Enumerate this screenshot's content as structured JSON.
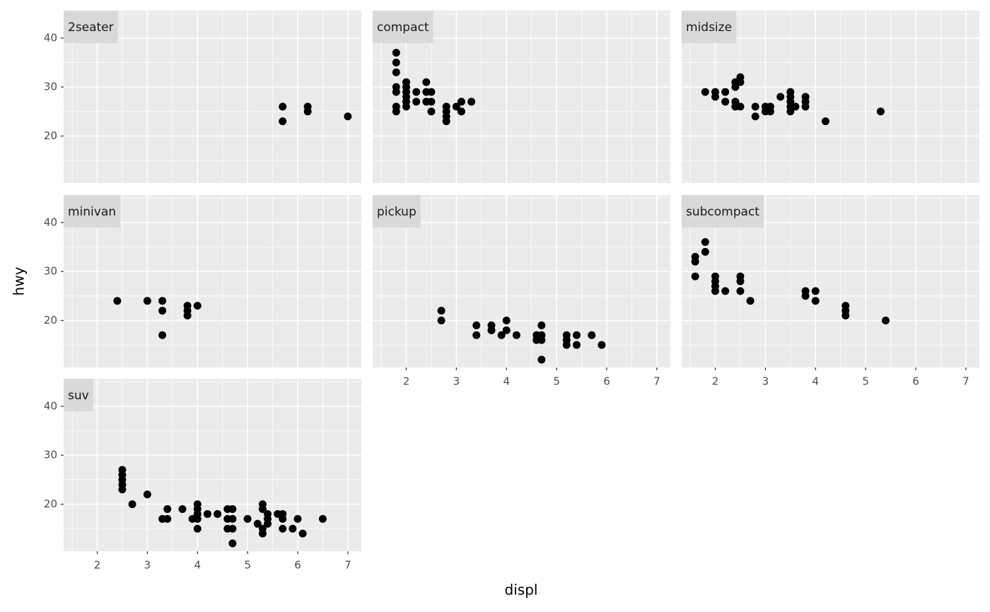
{
  "axis_labels": {
    "x": "displ",
    "y": "hwy"
  },
  "chart_data": [
    {
      "type": "scatter",
      "title": "2seater",
      "color": "#000000",
      "grid": true,
      "x": [
        5.7,
        5.7,
        6.2,
        6.2,
        7.0
      ],
      "values": [
        26,
        23,
        26,
        25,
        24
      ],
      "xlim": [
        1.33,
        7.27
      ],
      "ylim": [
        10.4,
        45.6
      ],
      "xticks": [
        2,
        3,
        4,
        5,
        6,
        7
      ],
      "yticks": [
        20,
        30,
        40
      ],
      "xminor": [
        1.5,
        2.5,
        3.5,
        4.5,
        5.5,
        6.5
      ],
      "yminor": [
        15,
        25,
        35,
        45
      ]
    },
    {
      "type": "scatter",
      "title": "compact",
      "color": "#000000",
      "grid": true,
      "x": [
        1.8,
        1.8,
        1.8,
        1.8,
        1.8,
        1.8,
        1.8,
        2.0,
        2.0,
        2.0,
        2.0,
        2.0,
        2.0,
        2.2,
        2.2,
        2.4,
        2.4,
        2.4,
        2.5,
        2.5,
        2.5,
        2.8,
        2.8,
        2.8,
        2.8,
        3.0,
        3.1,
        3.1,
        3.3
      ],
      "values": [
        25,
        26,
        29,
        30,
        33,
        35,
        37,
        26,
        27,
        28,
        29,
        30,
        31,
        27,
        29,
        27,
        29,
        31,
        25,
        27,
        29,
        23,
        24,
        25,
        26,
        26,
        25,
        27,
        27
      ],
      "xlim": [
        1.33,
        7.27
      ],
      "ylim": [
        10.4,
        45.6
      ],
      "xticks": [
        2,
        3,
        4,
        5,
        6,
        7
      ],
      "yticks": [
        20,
        30,
        40
      ],
      "xminor": [
        1.5,
        2.5,
        3.5,
        4.5,
        5.5,
        6.5
      ],
      "yminor": [
        15,
        25,
        35,
        45
      ]
    },
    {
      "type": "scatter",
      "title": "midsize",
      "color": "#000000",
      "grid": true,
      "x": [
        1.8,
        2.0,
        2.0,
        2.2,
        2.2,
        2.4,
        2.4,
        2.4,
        2.4,
        2.5,
        2.5,
        2.5,
        2.8,
        2.8,
        3.0,
        3.0,
        3.1,
        3.1,
        3.3,
        3.5,
        3.5,
        3.5,
        3.5,
        3.5,
        3.6,
        3.8,
        3.8,
        3.8,
        4.2,
        5.3
      ],
      "values": [
        29,
        28,
        29,
        27,
        29,
        26,
        27,
        30,
        31,
        26,
        31,
        32,
        24,
        26,
        25,
        26,
        25,
        26,
        28,
        25,
        26,
        27,
        28,
        29,
        26,
        26,
        27,
        28,
        23,
        25
      ],
      "xlim": [
        1.33,
        7.27
      ],
      "ylim": [
        10.4,
        45.6
      ],
      "xticks": [
        2,
        3,
        4,
        5,
        6,
        7
      ],
      "yticks": [
        20,
        30,
        40
      ],
      "xminor": [
        1.5,
        2.5,
        3.5,
        4.5,
        5.5,
        6.5
      ],
      "yminor": [
        15,
        25,
        35,
        45
      ]
    },
    {
      "type": "scatter",
      "title": "minivan",
      "color": "#000000",
      "grid": true,
      "x": [
        2.4,
        3.0,
        3.3,
        3.3,
        3.3,
        3.8,
        3.8,
        3.8,
        4.0
      ],
      "values": [
        24,
        24,
        17,
        22,
        24,
        21,
        22,
        23,
        23
      ],
      "xlim": [
        1.33,
        7.27
      ],
      "ylim": [
        10.4,
        45.6
      ],
      "xticks": [
        2,
        3,
        4,
        5,
        6,
        7
      ],
      "yticks": [
        20,
        30,
        40
      ],
      "xminor": [
        1.5,
        2.5,
        3.5,
        4.5,
        5.5,
        6.5
      ],
      "yminor": [
        15,
        25,
        35,
        45
      ]
    },
    {
      "type": "scatter",
      "title": "pickup",
      "color": "#000000",
      "grid": true,
      "x": [
        2.7,
        2.7,
        3.4,
        3.4,
        3.7,
        3.7,
        3.9,
        4.0,
        4.0,
        4.2,
        4.6,
        4.6,
        4.7,
        4.7,
        4.7,
        4.7,
        5.2,
        5.2,
        5.2,
        5.4,
        5.4,
        5.7,
        5.9
      ],
      "values": [
        20,
        22,
        17,
        19,
        18,
        19,
        17,
        18,
        20,
        17,
        16,
        17,
        12,
        16,
        17,
        19,
        15,
        16,
        17,
        15,
        17,
        17,
        15
      ],
      "xlim": [
        1.33,
        7.27
      ],
      "ylim": [
        10.4,
        45.6
      ],
      "xticks": [
        2,
        3,
        4,
        5,
        6,
        7
      ],
      "yticks": [
        20,
        30,
        40
      ],
      "xminor": [
        1.5,
        2.5,
        3.5,
        4.5,
        5.5,
        6.5
      ],
      "yminor": [
        15,
        25,
        35,
        45
      ]
    },
    {
      "type": "scatter",
      "title": "subcompact",
      "color": "#000000",
      "grid": true,
      "x": [
        1.6,
        1.6,
        1.6,
        1.8,
        1.8,
        2.0,
        2.0,
        2.0,
        2.0,
        2.2,
        2.5,
        2.5,
        2.5,
        2.7,
        3.8,
        3.8,
        4.0,
        4.0,
        4.6,
        4.6,
        4.6,
        5.4
      ],
      "values": [
        29,
        32,
        33,
        34,
        36,
        26,
        27,
        28,
        29,
        26,
        26,
        28,
        29,
        24,
        25,
        26,
        24,
        26,
        21,
        22,
        23,
        20
      ],
      "xlim": [
        1.33,
        7.27
      ],
      "ylim": [
        10.4,
        45.6
      ],
      "xticks": [
        2,
        3,
        4,
        5,
        6,
        7
      ],
      "yticks": [
        20,
        30,
        40
      ],
      "xminor": [
        1.5,
        2.5,
        3.5,
        4.5,
        5.5,
        6.5
      ],
      "yminor": [
        15,
        25,
        35,
        45
      ]
    },
    {
      "type": "scatter",
      "title": "suv",
      "color": "#000000",
      "grid": true,
      "x": [
        2.5,
        2.5,
        2.5,
        2.5,
        2.5,
        2.7,
        3.0,
        3.3,
        3.4,
        3.4,
        3.7,
        3.9,
        4.0,
        4.0,
        4.0,
        4.0,
        4.0,
        4.2,
        4.4,
        4.6,
        4.6,
        4.6,
        4.7,
        4.7,
        4.7,
        4.7,
        5.0,
        5.2,
        5.3,
        5.3,
        5.3,
        5.3,
        5.4,
        5.4,
        5.4,
        5.6,
        5.7,
        5.7,
        5.7,
        5.9,
        6.0,
        6.1,
        6.5
      ],
      "values": [
        23,
        24,
        25,
        26,
        27,
        20,
        22,
        17,
        17,
        19,
        19,
        17,
        15,
        17,
        18,
        19,
        20,
        18,
        18,
        15,
        17,
        19,
        12,
        15,
        17,
        19,
        17,
        16,
        14,
        15,
        19,
        20,
        16,
        17,
        18,
        18,
        15,
        17,
        18,
        15,
        17,
        14,
        17
      ],
      "xlim": [
        1.33,
        7.27
      ],
      "ylim": [
        10.4,
        45.6
      ],
      "xticks": [
        2,
        3,
        4,
        5,
        6,
        7
      ],
      "yticks": [
        20,
        30,
        40
      ],
      "xminor": [
        1.5,
        2.5,
        3.5,
        4.5,
        5.5,
        6.5
      ],
      "yminor": [
        15,
        25,
        35,
        45
      ]
    }
  ]
}
